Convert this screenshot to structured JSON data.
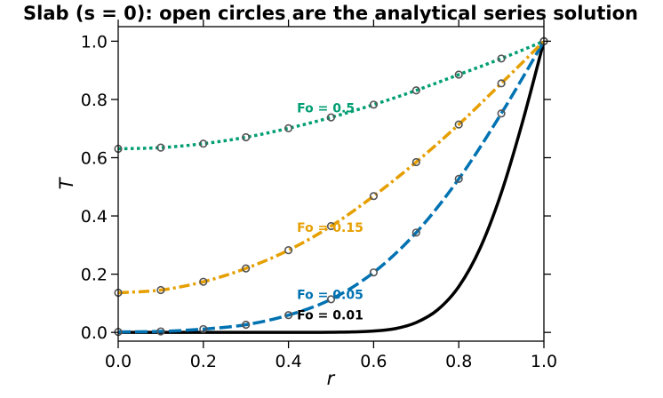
{
  "chart_data": {
    "type": "line",
    "title": "Slab (s = 0): open circles are the analytical series solution",
    "xlabel": "r",
    "ylabel": "T",
    "xlim": [
      0.0,
      1.0
    ],
    "ylim": [
      -0.03,
      1.05
    ],
    "xticks": [
      0.0,
      0.2,
      0.4,
      0.6,
      0.8,
      1.0
    ],
    "xtick_labels": [
      "0.0",
      "0.2",
      "0.4",
      "0.6",
      "0.8",
      "1.0"
    ],
    "yticks": [
      0.0,
      0.2,
      0.4,
      0.6,
      0.8,
      1.0
    ],
    "ytick_labels": [
      "0.0",
      "0.2",
      "0.4",
      "0.6",
      "0.8",
      "1.0"
    ],
    "grid": false,
    "series": [
      {
        "label": "Fo = 0.01",
        "color": "#000000",
        "style": "solid",
        "label_pos": {
          "x": 0.42,
          "y": 0.045
        },
        "x": [
          0.0,
          0.1,
          0.2,
          0.3,
          0.4,
          0.45,
          0.5,
          0.55,
          0.6,
          0.65,
          0.7,
          0.75,
          0.8,
          0.85,
          0.9,
          0.95,
          1.0
        ],
        "y": [
          0.0,
          0.0,
          0.0,
          0.0,
          0.0,
          0.0001,
          0.0005,
          0.0016,
          0.0047,
          0.0127,
          0.0339,
          0.0771,
          0.1573,
          0.2888,
          0.4795,
          0.7237,
          1.0
        ]
      },
      {
        "label": "Fo = 0.05",
        "color": "#0072b2",
        "style": "dashed",
        "label_pos": {
          "x": 0.42,
          "y": 0.115
        },
        "x": [
          0.0,
          0.1,
          0.2,
          0.3,
          0.4,
          0.5,
          0.6,
          0.7,
          0.8,
          0.9,
          1.0
        ],
        "y": [
          0.0016,
          0.0034,
          0.0114,
          0.0265,
          0.0594,
          0.1138,
          0.2059,
          0.3428,
          0.5271,
          0.7518,
          1.0
        ],
        "markers_x": [
          0.0,
          0.1,
          0.2,
          0.3,
          0.4,
          0.5,
          0.6,
          0.7,
          0.8,
          0.9,
          1.0
        ],
        "markers_y": [
          0.0016,
          0.0034,
          0.0114,
          0.0265,
          0.0594,
          0.1138,
          0.2059,
          0.3428,
          0.5271,
          0.7518,
          1.0
        ]
      },
      {
        "label": "Fo = 0.15",
        "color": "#e69f00",
        "style": "dashdot",
        "label_pos": {
          "x": 0.42,
          "y": 0.345
        },
        "x": [
          0.0,
          0.1,
          0.2,
          0.3,
          0.4,
          0.5,
          0.6,
          0.7,
          0.8,
          0.9,
          1.0
        ],
        "y": [
          0.1363,
          0.1454,
          0.1739,
          0.2197,
          0.2823,
          0.365,
          0.4682,
          0.5849,
          0.7141,
          0.8553,
          1.0
        ],
        "markers_x": [
          0.0,
          0.1,
          0.2,
          0.3,
          0.4,
          0.5,
          0.6,
          0.7,
          0.8,
          0.9,
          1.0
        ],
        "markers_y": [
          0.1363,
          0.1454,
          0.1739,
          0.2197,
          0.2823,
          0.365,
          0.4682,
          0.5849,
          0.7141,
          0.8553,
          1.0
        ]
      },
      {
        "label": "Fo = 0.5",
        "color": "#009e73",
        "style": "dotted",
        "label_pos": {
          "x": 0.42,
          "y": 0.755
        },
        "x": [
          0.0,
          0.1,
          0.2,
          0.3,
          0.4,
          0.5,
          0.6,
          0.7,
          0.8,
          0.9,
          1.0
        ],
        "y": [
          0.6305,
          0.6346,
          0.6482,
          0.6701,
          0.701,
          0.7384,
          0.7821,
          0.8311,
          0.8853,
          0.9404,
          1.0
        ],
        "markers_x": [
          0.0,
          0.1,
          0.2,
          0.3,
          0.4,
          0.5,
          0.6,
          0.7,
          0.8,
          0.9,
          1.0
        ],
        "markers_y": [
          0.6305,
          0.6346,
          0.6482,
          0.6701,
          0.701,
          0.7384,
          0.7821,
          0.8311,
          0.8853,
          0.9404,
          1.0
        ]
      }
    ],
    "marker_style": {
      "shape": "open-circle",
      "edge_color": "#555555"
    }
  }
}
